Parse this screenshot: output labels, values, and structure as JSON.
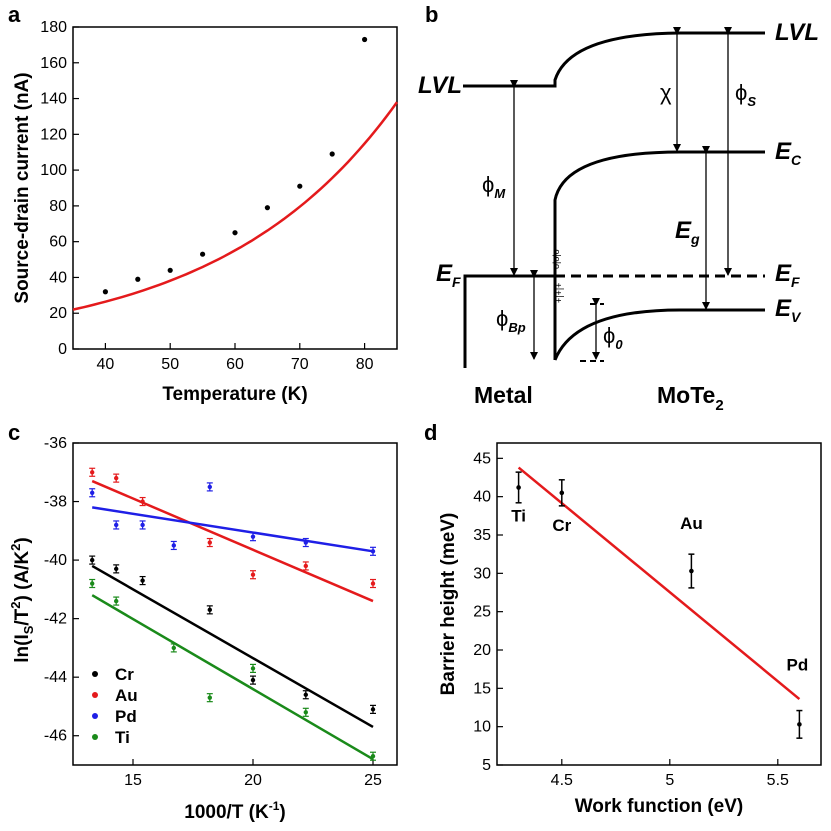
{
  "colors": {
    "red": "#e41a1c",
    "black": "#000000",
    "blue": "#1f1fe6",
    "green": "#1a8a1a"
  },
  "panels": {
    "a": "a",
    "b": "b",
    "c": "c",
    "d": "d"
  },
  "chart_data": [
    {
      "id": "a",
      "type": "scatter",
      "xlabel": "Temperature (K)",
      "ylabel": "Source-drain current (nA)",
      "xlim": [
        35,
        85
      ],
      "ylim": [
        0,
        180
      ],
      "xticks": [
        "40",
        "50",
        "60",
        "70",
        "80"
      ],
      "yticks": [
        "0",
        "20",
        "40",
        "60",
        "80",
        "100",
        "120",
        "140",
        "160",
        "180"
      ],
      "series": [
        {
          "name": "data",
          "x": [
            40,
            45,
            50,
            55,
            60,
            65,
            70,
            75,
            80
          ],
          "y": [
            32,
            39,
            44,
            53,
            65,
            79,
            91,
            109,
            173
          ]
        },
        {
          "name": "fit",
          "x": [
            35,
            45,
            55,
            65,
            75,
            85
          ],
          "y": [
            22,
            35,
            52,
            73,
            100,
            138
          ]
        }
      ]
    },
    {
      "id": "c",
      "type": "scatter",
      "xlabel": "1000/T (K",
      "xlabel_sup": "-1",
      "xlabel_end": ")",
      "ylabel": "ln(I_S/T^2) (A/K^2)",
      "xlim": [
        12.5,
        26
      ],
      "ylim": [
        -47,
        -36
      ],
      "xticks": [
        "15",
        "20",
        "25"
      ],
      "yticks": [
        "-36",
        "-38",
        "-40",
        "-42",
        "-44",
        "-46"
      ],
      "series": [
        {
          "name": "Cr",
          "x": [
            13.3,
            14.3,
            15.4,
            18.2,
            20.0,
            22.2,
            25.0
          ],
          "y": [
            -40.0,
            -40.3,
            -40.7,
            -41.7,
            -44.1,
            -44.6,
            -45.1
          ],
          "fit": [
            -40.2,
            -45.7
          ]
        },
        {
          "name": "Au",
          "x": [
            13.3,
            14.3,
            15.4,
            18.2,
            20.0,
            22.2,
            25.0
          ],
          "y": [
            -37.0,
            -37.2,
            -38.0,
            -39.4,
            -40.5,
            -40.2,
            -40.8
          ],
          "fit": [
            -37.3,
            -41.4
          ]
        },
        {
          "name": "Pd",
          "x": [
            13.3,
            14.3,
            15.4,
            16.7,
            18.2,
            20.0,
            22.2,
            25.0
          ],
          "y": [
            -37.7,
            -38.8,
            -38.8,
            -39.5,
            -37.5,
            -39.2,
            -39.4,
            -39.7
          ],
          "fit": [
            -38.2,
            -39.7
          ]
        },
        {
          "name": "Ti",
          "x": [
            13.3,
            14.3,
            16.7,
            18.2,
            20.0,
            22.2,
            25.0
          ],
          "y": [
            -40.8,
            -41.4,
            -43.0,
            -44.7,
            -43.7,
            -45.2,
            -46.7
          ],
          "fit": [
            -41.2,
            -46.8
          ]
        }
      ]
    },
    {
      "id": "d",
      "type": "scatter",
      "xlabel": "Work function (eV)",
      "ylabel": "Barrier height (meV)",
      "xlim": [
        4.2,
        5.7
      ],
      "ylim": [
        5,
        47
      ],
      "xticks": [
        "4.5",
        "5",
        "5.5"
      ],
      "yticks": [
        "5",
        "10",
        "15",
        "20",
        "25",
        "30",
        "35",
        "40",
        "45"
      ],
      "points": [
        {
          "label": "Ti",
          "x": 4.3,
          "y": 41.2,
          "err": 2.0
        },
        {
          "label": "Cr",
          "x": 4.5,
          "y": 40.5,
          "err": 1.7
        },
        {
          "label": "Au",
          "x": 5.1,
          "y": 30.3,
          "err": 2.2
        },
        {
          "label": "Pd",
          "x": 5.6,
          "y": 10.3,
          "err": 1.8
        }
      ],
      "fit": {
        "x": [
          4.3,
          5.6
        ],
        "y": [
          43.8,
          13.6
        ]
      }
    }
  ],
  "diagram": {
    "lvl_left": "LVL",
    "lvl_right": "LVL",
    "chi": "χ",
    "phi": "ϕ",
    "phi_s_sub": "S",
    "phi_m_sub": "M",
    "phi_bp_sub": "Bp",
    "phi_0_sub": "0",
    "e": "E",
    "ec_sub": "C",
    "eg_sub": "g",
    "ef_sub": "F",
    "ev_sub": "V",
    "metal": "Metal",
    "mote": "MoTe",
    "mote_sub": "2"
  }
}
